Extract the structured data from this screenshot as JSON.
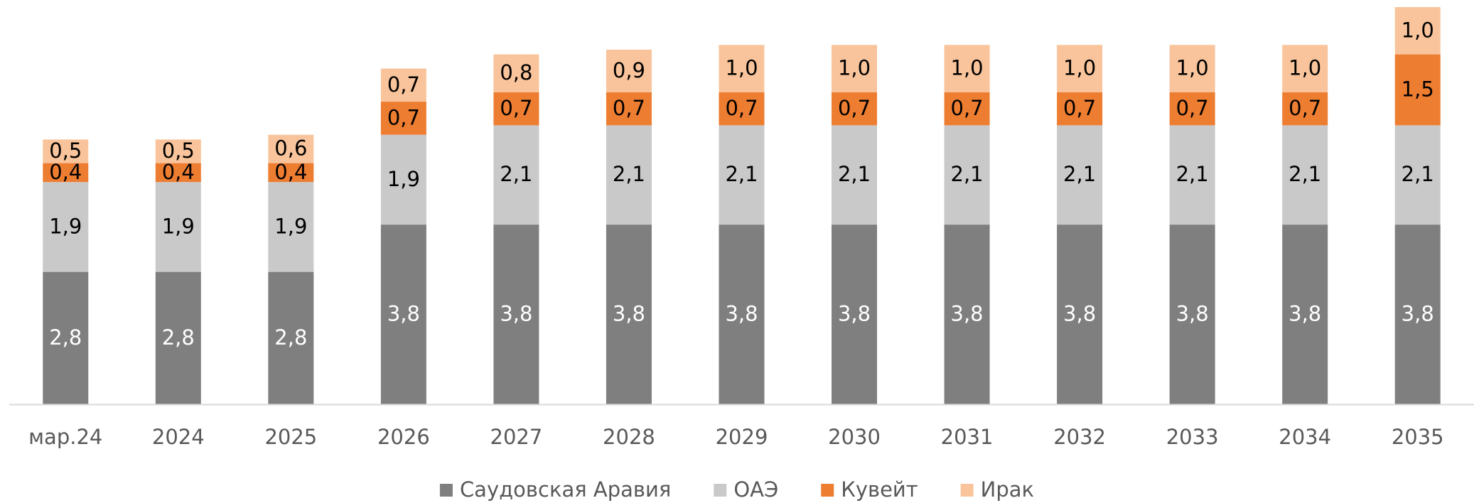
{
  "chart_data": {
    "type": "stacked_bar",
    "categories": [
      "мар.24",
      "2024",
      "2025",
      "2026",
      "2027",
      "2028",
      "2029",
      "2030",
      "2031",
      "2032",
      "2033",
      "2034",
      "2035"
    ],
    "series": [
      {
        "name": "Саудовская Аравия",
        "color": "#7f7f7f",
        "values": [
          2.8,
          2.8,
          2.8,
          3.8,
          3.8,
          3.8,
          3.8,
          3.8,
          3.8,
          3.8,
          3.8,
          3.8,
          3.8
        ],
        "value_labels": [
          "2,8",
          "2,8",
          "2,8",
          "3,8",
          "3,8",
          "3,8",
          "3,8",
          "3,8",
          "3,8",
          "3,8",
          "3,8",
          "3,8",
          "3,8"
        ]
      },
      {
        "name": "ОАЭ",
        "color": "#c9c9c9",
        "values": [
          1.9,
          1.9,
          1.9,
          1.9,
          2.1,
          2.1,
          2.1,
          2.1,
          2.1,
          2.1,
          2.1,
          2.1,
          2.1
        ],
        "value_labels": [
          "1,9",
          "1,9",
          "1,9",
          "1,9",
          "2,1",
          "2,1",
          "2,1",
          "2,1",
          "2,1",
          "2,1",
          "2,1",
          "2,1",
          "2,1"
        ]
      },
      {
        "name": "Кувейт",
        "color": "#ed7d31",
        "values": [
          0.4,
          0.4,
          0.4,
          0.7,
          0.7,
          0.7,
          0.7,
          0.7,
          0.7,
          0.7,
          0.7,
          0.7,
          1.5
        ],
        "value_labels": [
          "0,4",
          "0,4",
          "0,4",
          "0,7",
          "0,7",
          "0,7",
          "0,7",
          "0,7",
          "0,7",
          "0,7",
          "0,7",
          "0,7",
          "1,5"
        ]
      },
      {
        "name": "Ирак",
        "color": "#f9c49b",
        "values": [
          0.5,
          0.5,
          0.6,
          0.7,
          0.8,
          0.9,
          1.0,
          1.0,
          1.0,
          1.0,
          1.0,
          1.0,
          1.0
        ],
        "value_labels": [
          "0,5",
          "0,5",
          "0,6",
          "0,7",
          "0,8",
          "0,9",
          "1,0",
          "1,0",
          "1,0",
          "1,0",
          "1,0",
          "1,0",
          "1,0"
        ]
      }
    ],
    "legend": "bottom"
  }
}
